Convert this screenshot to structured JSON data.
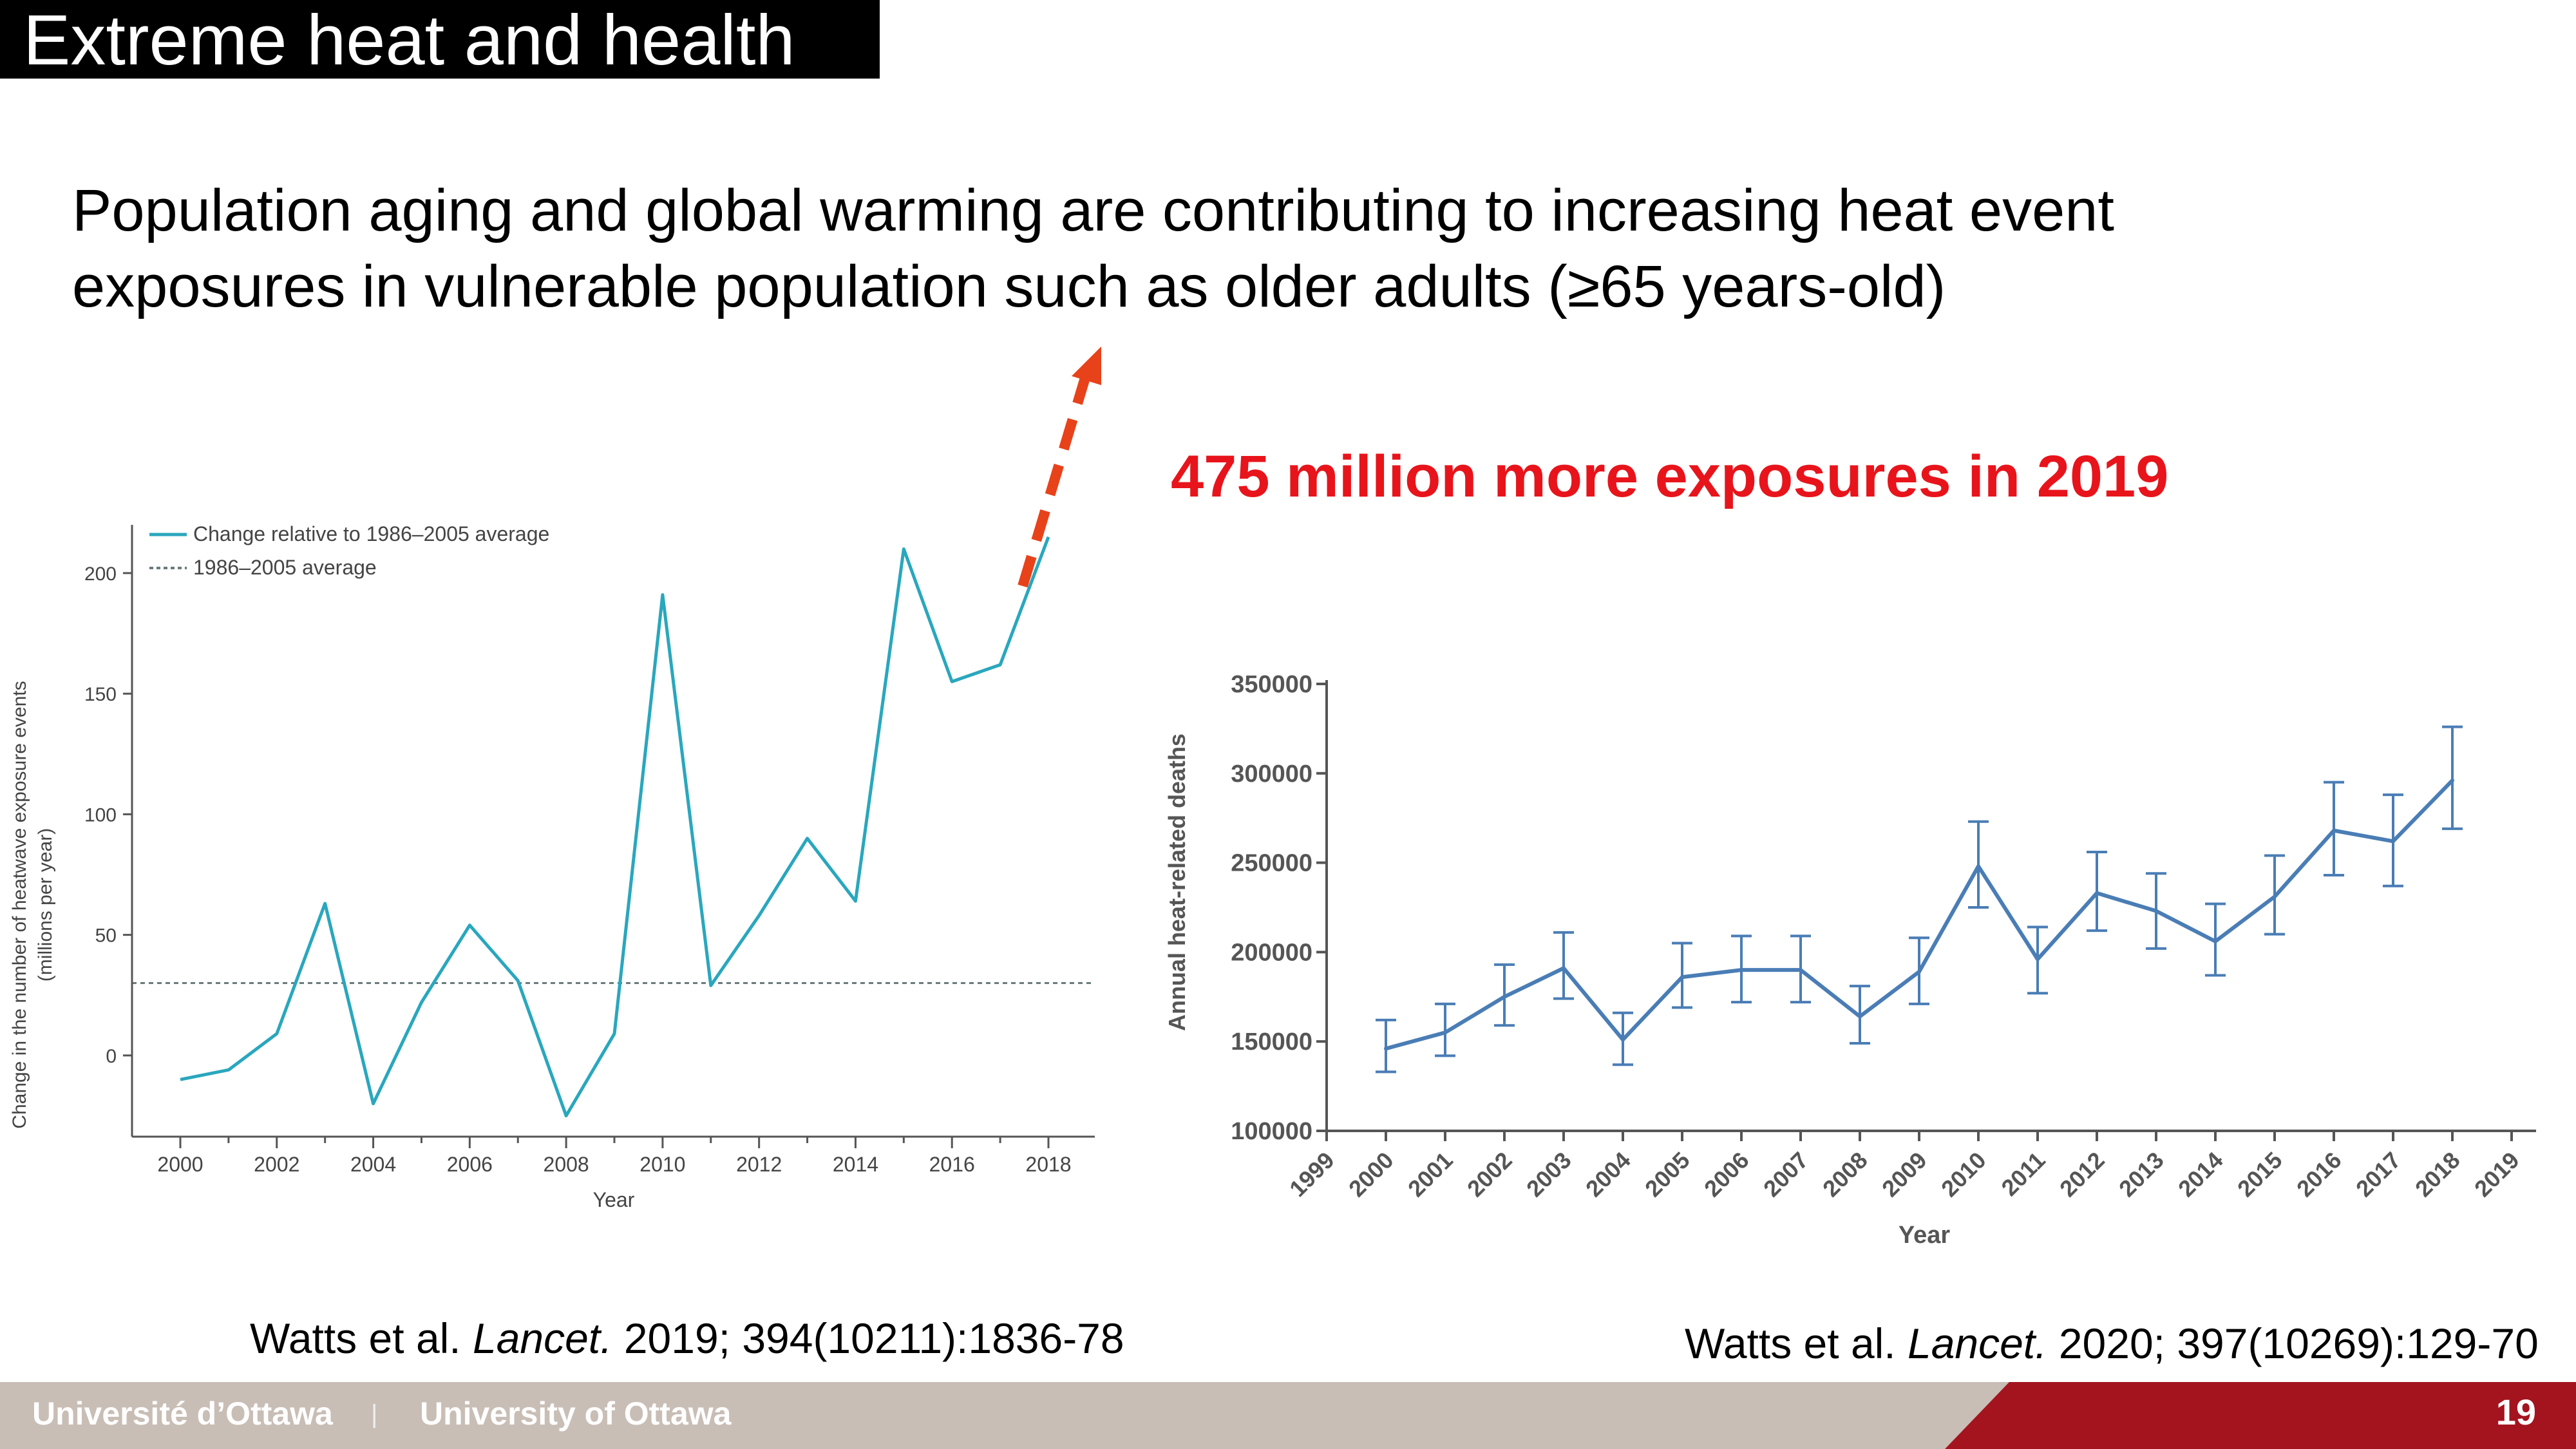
{
  "slide": {
    "title": "Extreme heat and health",
    "lead_line1": "Population aging and global warming are contributing to increasing heat event",
    "lead_line2": "exposures in vulnerable population such as older adults (≥65 years-old)",
    "highlight": "475 million more exposures in 2019",
    "citation_left": {
      "prefix": "Watts et al. ",
      "journal": "Lancet.",
      "suffix": " 2019; 394(10211):1836-78"
    },
    "citation_right": {
      "prefix": "Watts et al. ",
      "journal": "Lancet.",
      "suffix": " 2020; 397(10269):129-70"
    },
    "footer_fr": "Université d’Ottawa",
    "footer_sep": "|",
    "footer_en": "University of Ottawa",
    "page_number": "19"
  },
  "colors": {
    "accent_red": "#e8141b",
    "arrow": "#e8421b",
    "teal_line": "#29a7bd",
    "blue_line": "#4a7db5",
    "footer_gray": "#c8beb6",
    "footer_red": "#a3141f"
  },
  "chart_data": [
    {
      "type": "line",
      "xlabel": "Year",
      "ylabel": "Change in the number of heatwave exposure events",
      "ylabel2": "(millions per year)",
      "x": [
        2000,
        2001,
        2002,
        2003,
        2004,
        2005,
        2006,
        2007,
        2008,
        2009,
        2010,
        2011,
        2012,
        2013,
        2014,
        2015,
        2016,
        2017,
        2018
      ],
      "xticks": [
        "2000",
        "2002",
        "2004",
        "2006",
        "2008",
        "2010",
        "2012",
        "2014",
        "2016",
        "2018"
      ],
      "series": [
        {
          "name": "Change relative to 1986–2005 average",
          "values": [
            -10,
            -6,
            9,
            63,
            -20,
            22,
            54,
            31,
            -25,
            9,
            191,
            29,
            58,
            90,
            64,
            210,
            155,
            162,
            215
          ]
        }
      ],
      "reference": {
        "name": "1986–2005 average",
        "value": 30
      },
      "ylim": [
        -27,
        220
      ],
      "yticks": [
        0,
        50,
        100,
        150,
        200
      ],
      "legend": "top-left",
      "arrow": "dashed upward from last point"
    },
    {
      "type": "line",
      "xlabel": "Year",
      "ylabel": "Annual heat-related deaths",
      "x": [
        2000,
        2001,
        2002,
        2003,
        2004,
        2005,
        2006,
        2007,
        2008,
        2009,
        2010,
        2011,
        2012,
        2013,
        2014,
        2015,
        2016,
        2017,
        2018
      ],
      "xticks": [
        "1999",
        "2000",
        "2001",
        "2002",
        "2003",
        "2004",
        "2005",
        "2006",
        "2007",
        "2008",
        "2009",
        "2010",
        "2011",
        "2012",
        "2013",
        "2014",
        "2015",
        "2016",
        "2017",
        "2018",
        "2019"
      ],
      "series": [
        {
          "values": [
            146000,
            155000,
            175000,
            191000,
            151000,
            186000,
            190000,
            190000,
            164000,
            189000,
            248000,
            196000,
            233000,
            223000,
            206000,
            231000,
            268000,
            262000,
            296000
          ],
          "lower": [
            133000,
            142000,
            159000,
            174000,
            137000,
            169000,
            172000,
            172000,
            149000,
            171000,
            225000,
            177000,
            212000,
            202000,
            187000,
            210000,
            243000,
            237000,
            269000
          ],
          "upper": [
            162000,
            171000,
            193000,
            211000,
            166000,
            205000,
            209000,
            209000,
            181000,
            208000,
            273000,
            214000,
            256000,
            244000,
            227000,
            254000,
            295000,
            288000,
            326000
          ]
        }
      ],
      "ylim": [
        100000,
        350000
      ],
      "yticks": [
        "100000",
        "150000",
        "200000",
        "250000",
        "300000",
        "350000"
      ],
      "error_bars": true
    }
  ]
}
